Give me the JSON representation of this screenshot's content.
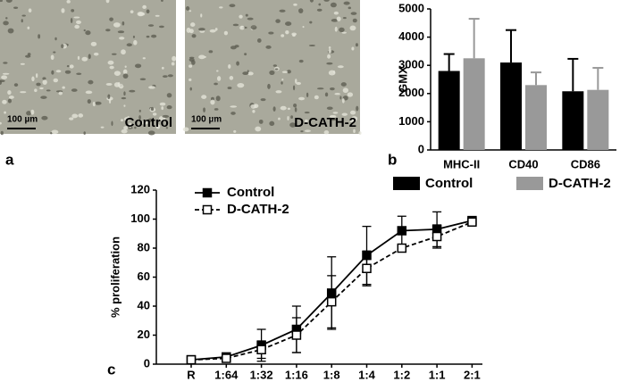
{
  "images": [
    {
      "label": "Control",
      "scale_bar": "100 µm"
    },
    {
      "label": "D-CATH-2",
      "scale_bar": "100 µm"
    }
  ],
  "panel_labels": [
    "a",
    "b",
    "c"
  ],
  "chart_data": [
    {
      "type": "bar",
      "ylabel": "GMX",
      "categories": [
        "MHC-II",
        "CD40",
        "CD86"
      ],
      "series": [
        {
          "name": "Control",
          "color": "#000000",
          "values": [
            2800,
            3100,
            2080
          ],
          "errors": [
            600,
            1150,
            1150
          ]
        },
        {
          "name": "D-CATH-2",
          "color": "#999999",
          "values": [
            3250,
            2300,
            2130
          ],
          "errors": [
            1400,
            450,
            780
          ]
        }
      ],
      "ylim": [
        0,
        5000
      ],
      "yticks": [
        0,
        1000,
        2000,
        3000,
        4000,
        5000
      ],
      "legend": "bottom"
    },
    {
      "type": "line",
      "ylabel": "% proliferation",
      "categories": [
        "R",
        "1:64",
        "1:32",
        "1:16",
        "1:8",
        "1:4",
        "1:2",
        "1:1",
        "2:1"
      ],
      "series": [
        {
          "name": "Control",
          "color": "#000000",
          "linestyle": "solid",
          "marker_fill": "#000000",
          "values": [
            3,
            5,
            13,
            24,
            49,
            75,
            92,
            93,
            99
          ],
          "errors": [
            0,
            1,
            11,
            16,
            25,
            20,
            10,
            12,
            0
          ]
        },
        {
          "name": "D-CATH-2",
          "color": "#000000",
          "linestyle": "dashed",
          "marker_fill": "#ffffff",
          "values": [
            3,
            4,
            10,
            20,
            43,
            66,
            80,
            88,
            98
          ],
          "errors": [
            0,
            1,
            6,
            12,
            18,
            12,
            2,
            8,
            0
          ]
        }
      ],
      "ylim": [
        0,
        120
      ],
      "yticks": [
        0,
        20,
        40,
        60,
        80,
        100,
        120
      ],
      "legend": "upper left"
    }
  ]
}
